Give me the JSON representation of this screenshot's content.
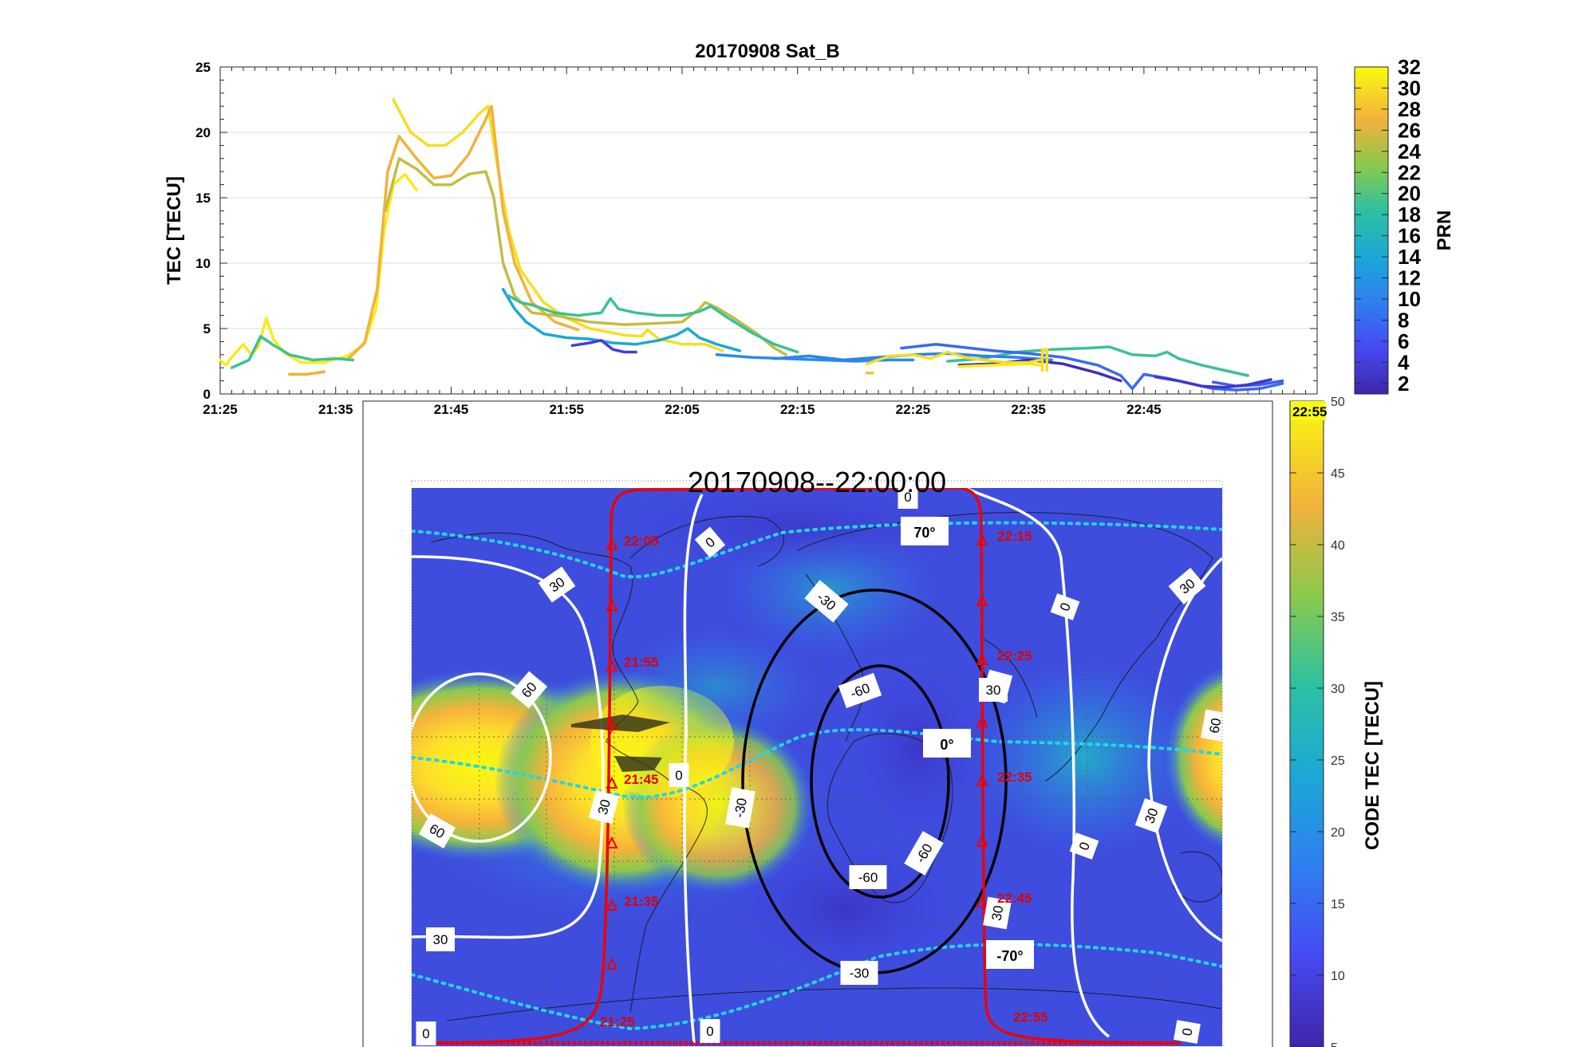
{
  "chart_data": [
    {
      "type": "line",
      "title": "20170908  Sat_B",
      "xlabel": "",
      "ylabel": "TEC [TECU]",
      "ylim": [
        0,
        25
      ],
      "yticks": [
        "0",
        "5",
        "10",
        "15",
        "20",
        "25"
      ],
      "xlim_minutes": [
        1285,
        1380
      ],
      "xticks": [
        {
          "label": "21:25",
          "min": 1285
        },
        {
          "label": "21:35",
          "min": 1295
        },
        {
          "label": "21:45",
          "min": 1305
        },
        {
          "label": "21:55",
          "min": 1315
        },
        {
          "label": "22:05",
          "min": 1325
        },
        {
          "label": "22:15",
          "min": 1335
        },
        {
          "label": "22:25",
          "min": 1345
        },
        {
          "label": "22:35",
          "min": 1355
        },
        {
          "label": "22:45",
          "min": 1365
        }
      ],
      "grid": true,
      "colorbar": {
        "label": "PRN",
        "ticks": [
          "2",
          "4",
          "6",
          "8",
          "10",
          "12",
          "14",
          "16",
          "18",
          "20",
          "22",
          "24",
          "26",
          "28",
          "30",
          "32"
        ],
        "range": [
          1,
          32
        ]
      },
      "series": [
        {
          "prn": 31,
          "points": [
            [
              1285,
              2.6
            ],
            [
              1285.5,
              2.2
            ],
            [
              1286,
              2.8
            ],
            [
              1287,
              3.8
            ],
            [
              1287.7,
              3.0
            ],
            [
              1288.3,
              3.6
            ],
            [
              1289,
              5.8
            ],
            [
              1289.6,
              4.2
            ],
            [
              1290.5,
              3.2
            ],
            [
              1292,
              2.4
            ],
            [
              1294,
              2.4
            ],
            [
              1296,
              2.9
            ],
            [
              1297.5,
              3.8
            ],
            [
              1298.5,
              6.5
            ],
            [
              1299.2,
              12.5
            ],
            [
              1300,
              16.0
            ],
            [
              1301,
              16.8
            ],
            [
              1302,
              15.6
            ]
          ]
        },
        {
          "prn": 30,
          "points": [
            [
              1300,
              22.5
            ],
            [
              1301.5,
              20.0
            ],
            [
              1303,
              19.0
            ],
            [
              1304.5,
              19.0
            ],
            [
              1306,
              20.0
            ],
            [
              1307.5,
              21.5
            ],
            [
              1308.2,
              22.0
            ],
            [
              1309,
              17.5
            ],
            [
              1310,
              12.5
            ],
            [
              1311,
              9.5
            ],
            [
              1313,
              7.0
            ],
            [
              1315,
              5.8
            ],
            [
              1317,
              5.0
            ],
            [
              1320,
              4.5
            ],
            [
              1321.5,
              4.4
            ],
            [
              1322,
              4.9
            ],
            [
              1323,
              4.2
            ],
            [
              1325,
              3.8
            ],
            [
              1327,
              3.8
            ],
            [
              1328.5,
              3.3
            ]
          ]
        },
        {
          "prn": 27,
          "points": [
            [
              1291,
              1.5
            ],
            [
              1292.5,
              1.5
            ],
            [
              1294,
              1.7
            ]
          ]
        },
        {
          "prn": 27,
          "points": [
            [
              1296,
              2.6
            ],
            [
              1297.5,
              3.9
            ],
            [
              1298.6,
              8.0
            ],
            [
              1299.5,
              17.0
            ],
            [
              1300.5,
              19.7
            ],
            [
              1302,
              18.0
            ],
            [
              1303.5,
              16.5
            ],
            [
              1305,
              16.7
            ],
            [
              1306.5,
              18.3
            ],
            [
              1308,
              21.0
            ],
            [
              1308.5,
              22.0
            ],
            [
              1309.5,
              14.0
            ],
            [
              1310.5,
              10.0
            ],
            [
              1312,
              7.0
            ],
            [
              1314,
              5.5
            ],
            [
              1316,
              4.9
            ]
          ]
        },
        {
          "prn": 25,
          "points": [
            [
              1299.3,
              14.0
            ],
            [
              1300.5,
              18.0
            ],
            [
              1302,
              17.2
            ],
            [
              1303.5,
              16.0
            ],
            [
              1305,
              16.0
            ],
            [
              1306.5,
              16.8
            ],
            [
              1308,
              17.0
            ],
            [
              1308.7,
              15.0
            ],
            [
              1309.5,
              10.0
            ],
            [
              1310.5,
              7.5
            ],
            [
              1312,
              6.2
            ],
            [
              1314,
              6.0
            ],
            [
              1317,
              5.5
            ],
            [
              1320,
              5.3
            ],
            [
              1323,
              5.4
            ],
            [
              1325,
              5.5
            ],
            [
              1326.5,
              6.5
            ],
            [
              1327,
              7.0
            ],
            [
              1328,
              6.6
            ],
            [
              1329.5,
              5.8
            ],
            [
              1331.5,
              4.6
            ],
            [
              1333,
              3.5
            ],
            [
              1334,
              3.0
            ]
          ]
        },
        {
          "prn": 19,
          "points": [
            [
              1286,
              2.0
            ],
            [
              1287.5,
              2.6
            ],
            [
              1288.5,
              4.4
            ],
            [
              1289.5,
              3.8
            ],
            [
              1291,
              3.0
            ],
            [
              1293,
              2.6
            ],
            [
              1295,
              2.7
            ],
            [
              1296.5,
              2.6
            ]
          ]
        },
        {
          "prn": 19,
          "points": [
            [
              1310,
              7.5
            ],
            [
              1311,
              7.0
            ],
            [
              1312,
              6.8
            ],
            [
              1314,
              6.2
            ],
            [
              1316,
              6.0
            ],
            [
              1318,
              6.2
            ],
            [
              1318.8,
              7.3
            ],
            [
              1319.5,
              6.5
            ],
            [
              1321,
              6.2
            ],
            [
              1323,
              6.0
            ],
            [
              1325,
              6.0
            ],
            [
              1326.5,
              6.3
            ],
            [
              1327.5,
              6.7
            ],
            [
              1329,
              5.8
            ],
            [
              1331,
              4.7
            ],
            [
              1333,
              3.8
            ],
            [
              1335,
              3.2
            ]
          ]
        },
        {
          "prn": 19,
          "points": [
            [
              1348,
              2.5
            ],
            [
              1351,
              2.7
            ],
            [
              1354,
              3.2
            ],
            [
              1357,
              3.4
            ],
            [
              1360,
              3.5
            ],
            [
              1362,
              3.6
            ],
            [
              1364,
              3.0
            ],
            [
              1366,
              2.9
            ],
            [
              1367,
              3.2
            ],
            [
              1368,
              2.7
            ],
            [
              1370,
              2.2
            ],
            [
              1372,
              1.8
            ],
            [
              1374,
              1.4
            ]
          ]
        },
        {
          "prn": 14,
          "points": [
            [
              1309.5,
              8.0
            ],
            [
              1310.5,
              6.5
            ],
            [
              1311.5,
              5.5
            ],
            [
              1313,
              4.6
            ],
            [
              1315,
              4.3
            ],
            [
              1317,
              4.2
            ],
            [
              1319,
              3.9
            ],
            [
              1321,
              3.8
            ],
            [
              1323,
              4.1
            ],
            [
              1324.5,
              4.5
            ],
            [
              1325.5,
              5.0
            ],
            [
              1326.5,
              4.3
            ],
            [
              1328,
              3.8
            ],
            [
              1330,
              3.3
            ]
          ]
        },
        {
          "prn": 11,
          "points": [
            [
              1328,
              3.0
            ],
            [
              1331,
              2.8
            ],
            [
              1334,
              2.7
            ],
            [
              1337,
              2.6
            ],
            [
              1340,
              2.5
            ],
            [
              1343,
              2.6
            ],
            [
              1345,
              2.6
            ]
          ]
        },
        {
          "prn": 10,
          "points": [
            [
              1333,
              2.7
            ],
            [
              1336,
              2.9
            ],
            [
              1339,
              2.6
            ],
            [
              1342,
              2.8
            ],
            [
              1345,
              3.0
            ],
            [
              1348,
              3.1
            ],
            [
              1351,
              2.9
            ],
            [
              1354,
              2.8
            ],
            [
              1357,
              2.6
            ]
          ]
        },
        {
          "prn": 8,
          "points": [
            [
              1344,
              3.5
            ],
            [
              1347,
              3.8
            ],
            [
              1349,
              3.6
            ],
            [
              1352,
              3.3
            ],
            [
              1355,
              3.1
            ],
            [
              1358,
              2.8
            ],
            [
              1361,
              2.2
            ],
            [
              1363,
              1.4
            ],
            [
              1364,
              0.4
            ],
            [
              1365,
              1.5
            ],
            [
              1367,
              1.2
            ],
            [
              1369,
              0.8
            ],
            [
              1371,
              0.4
            ],
            [
              1373,
              0.3
            ],
            [
              1375,
              0.4
            ],
            [
              1377,
              0.8
            ]
          ]
        },
        {
          "prn": 7,
          "points": [
            [
              1371,
              0.9
            ],
            [
              1373,
              0.6
            ],
            [
              1375,
              0.7
            ],
            [
              1377,
              1.0
            ]
          ]
        },
        {
          "prn": 4,
          "points": [
            [
              1315.5,
              3.7
            ],
            [
              1317,
              3.9
            ],
            [
              1318,
              4.1
            ],
            [
              1319,
              3.4
            ],
            [
              1320,
              3.2
            ],
            [
              1321,
              3.2
            ]
          ]
        },
        {
          "prn": 2,
          "points": [
            [
              1349,
              2.2
            ],
            [
              1352,
              2.3
            ],
            [
              1355,
              2.6
            ],
            [
              1358,
              2.3
            ],
            [
              1361,
              1.6
            ],
            [
              1363,
              1.0
            ]
          ]
        },
        {
          "prn": 3,
          "points": [
            [
              1366,
              1.3
            ],
            [
              1368,
              1.0
            ],
            [
              1370,
              0.6
            ],
            [
              1372,
              0.5
            ],
            [
              1374,
              0.7
            ],
            [
              1376,
              1.1
            ]
          ]
        },
        {
          "prn": 30,
          "points": [
            [
              1341,
              2.3
            ],
            [
              1343,
              2.9
            ],
            [
              1345,
              3.0
            ],
            [
              1346.5,
              2.7
            ],
            [
              1348,
              3.2
            ],
            [
              1349.5,
              2.8
            ],
            [
              1351,
              2.6
            ],
            [
              1353,
              2.4
            ],
            [
              1355,
              2.4
            ],
            [
              1356,
              2.6
            ]
          ]
        },
        {
          "prn": 30,
          "points": [
            [
              1356.2,
              1.8
            ],
            [
              1356.2,
              3.4
            ],
            [
              1356.6,
              3.4
            ],
            [
              1356.6,
              1.8
            ]
          ]
        },
        {
          "prn": 28,
          "points": [
            [
              1341,
              1.6
            ],
            [
              1341.5,
              1.6
            ]
          ]
        },
        {
          "prn": 31,
          "points": [
            [
              1349,
              2.1
            ],
            [
              1352,
              2.2
            ],
            [
              1355,
              2.3
            ],
            [
              1356,
              2.2
            ]
          ]
        }
      ]
    },
    {
      "type": "heatmap",
      "title": "20170908--22:00:00",
      "colorbar": {
        "label": "CODE TEC [TECU]",
        "ticks": [
          "5",
          "10",
          "15",
          "20",
          "25",
          "30",
          "35",
          "40",
          "45",
          "50"
        ],
        "range": [
          5,
          50
        ]
      },
      "contour_labels": [
        {
          "text": "0"
        },
        {
          "text": "0"
        },
        {
          "text": "0"
        },
        {
          "text": "0"
        },
        {
          "text": "0"
        },
        {
          "text": "0"
        },
        {
          "text": "0"
        },
        {
          "text": "0"
        },
        {
          "text": "30"
        },
        {
          "text": "30"
        },
        {
          "text": "30"
        },
        {
          "text": "30"
        },
        {
          "text": "30"
        },
        {
          "text": "30"
        },
        {
          "text": "30"
        },
        {
          "text": "60"
        },
        {
          "text": "60"
        },
        {
          "text": "60"
        },
        {
          "text": "-30"
        },
        {
          "text": "-30"
        },
        {
          "text": "-30"
        },
        {
          "text": "-60"
        },
        {
          "text": "-60"
        },
        {
          "text": "-60"
        },
        {
          "text": "30"
        }
      ],
      "lat_labels": [
        "70°",
        "0°",
        "-70°"
      ],
      "orbit_time_labels": [
        "22:05",
        "21:55",
        "21:45",
        "21:35",
        "21:25",
        "22:15",
        "22:25",
        "22:35",
        "22:45",
        "22:55"
      ],
      "overlay_time": "22:55"
    }
  ]
}
